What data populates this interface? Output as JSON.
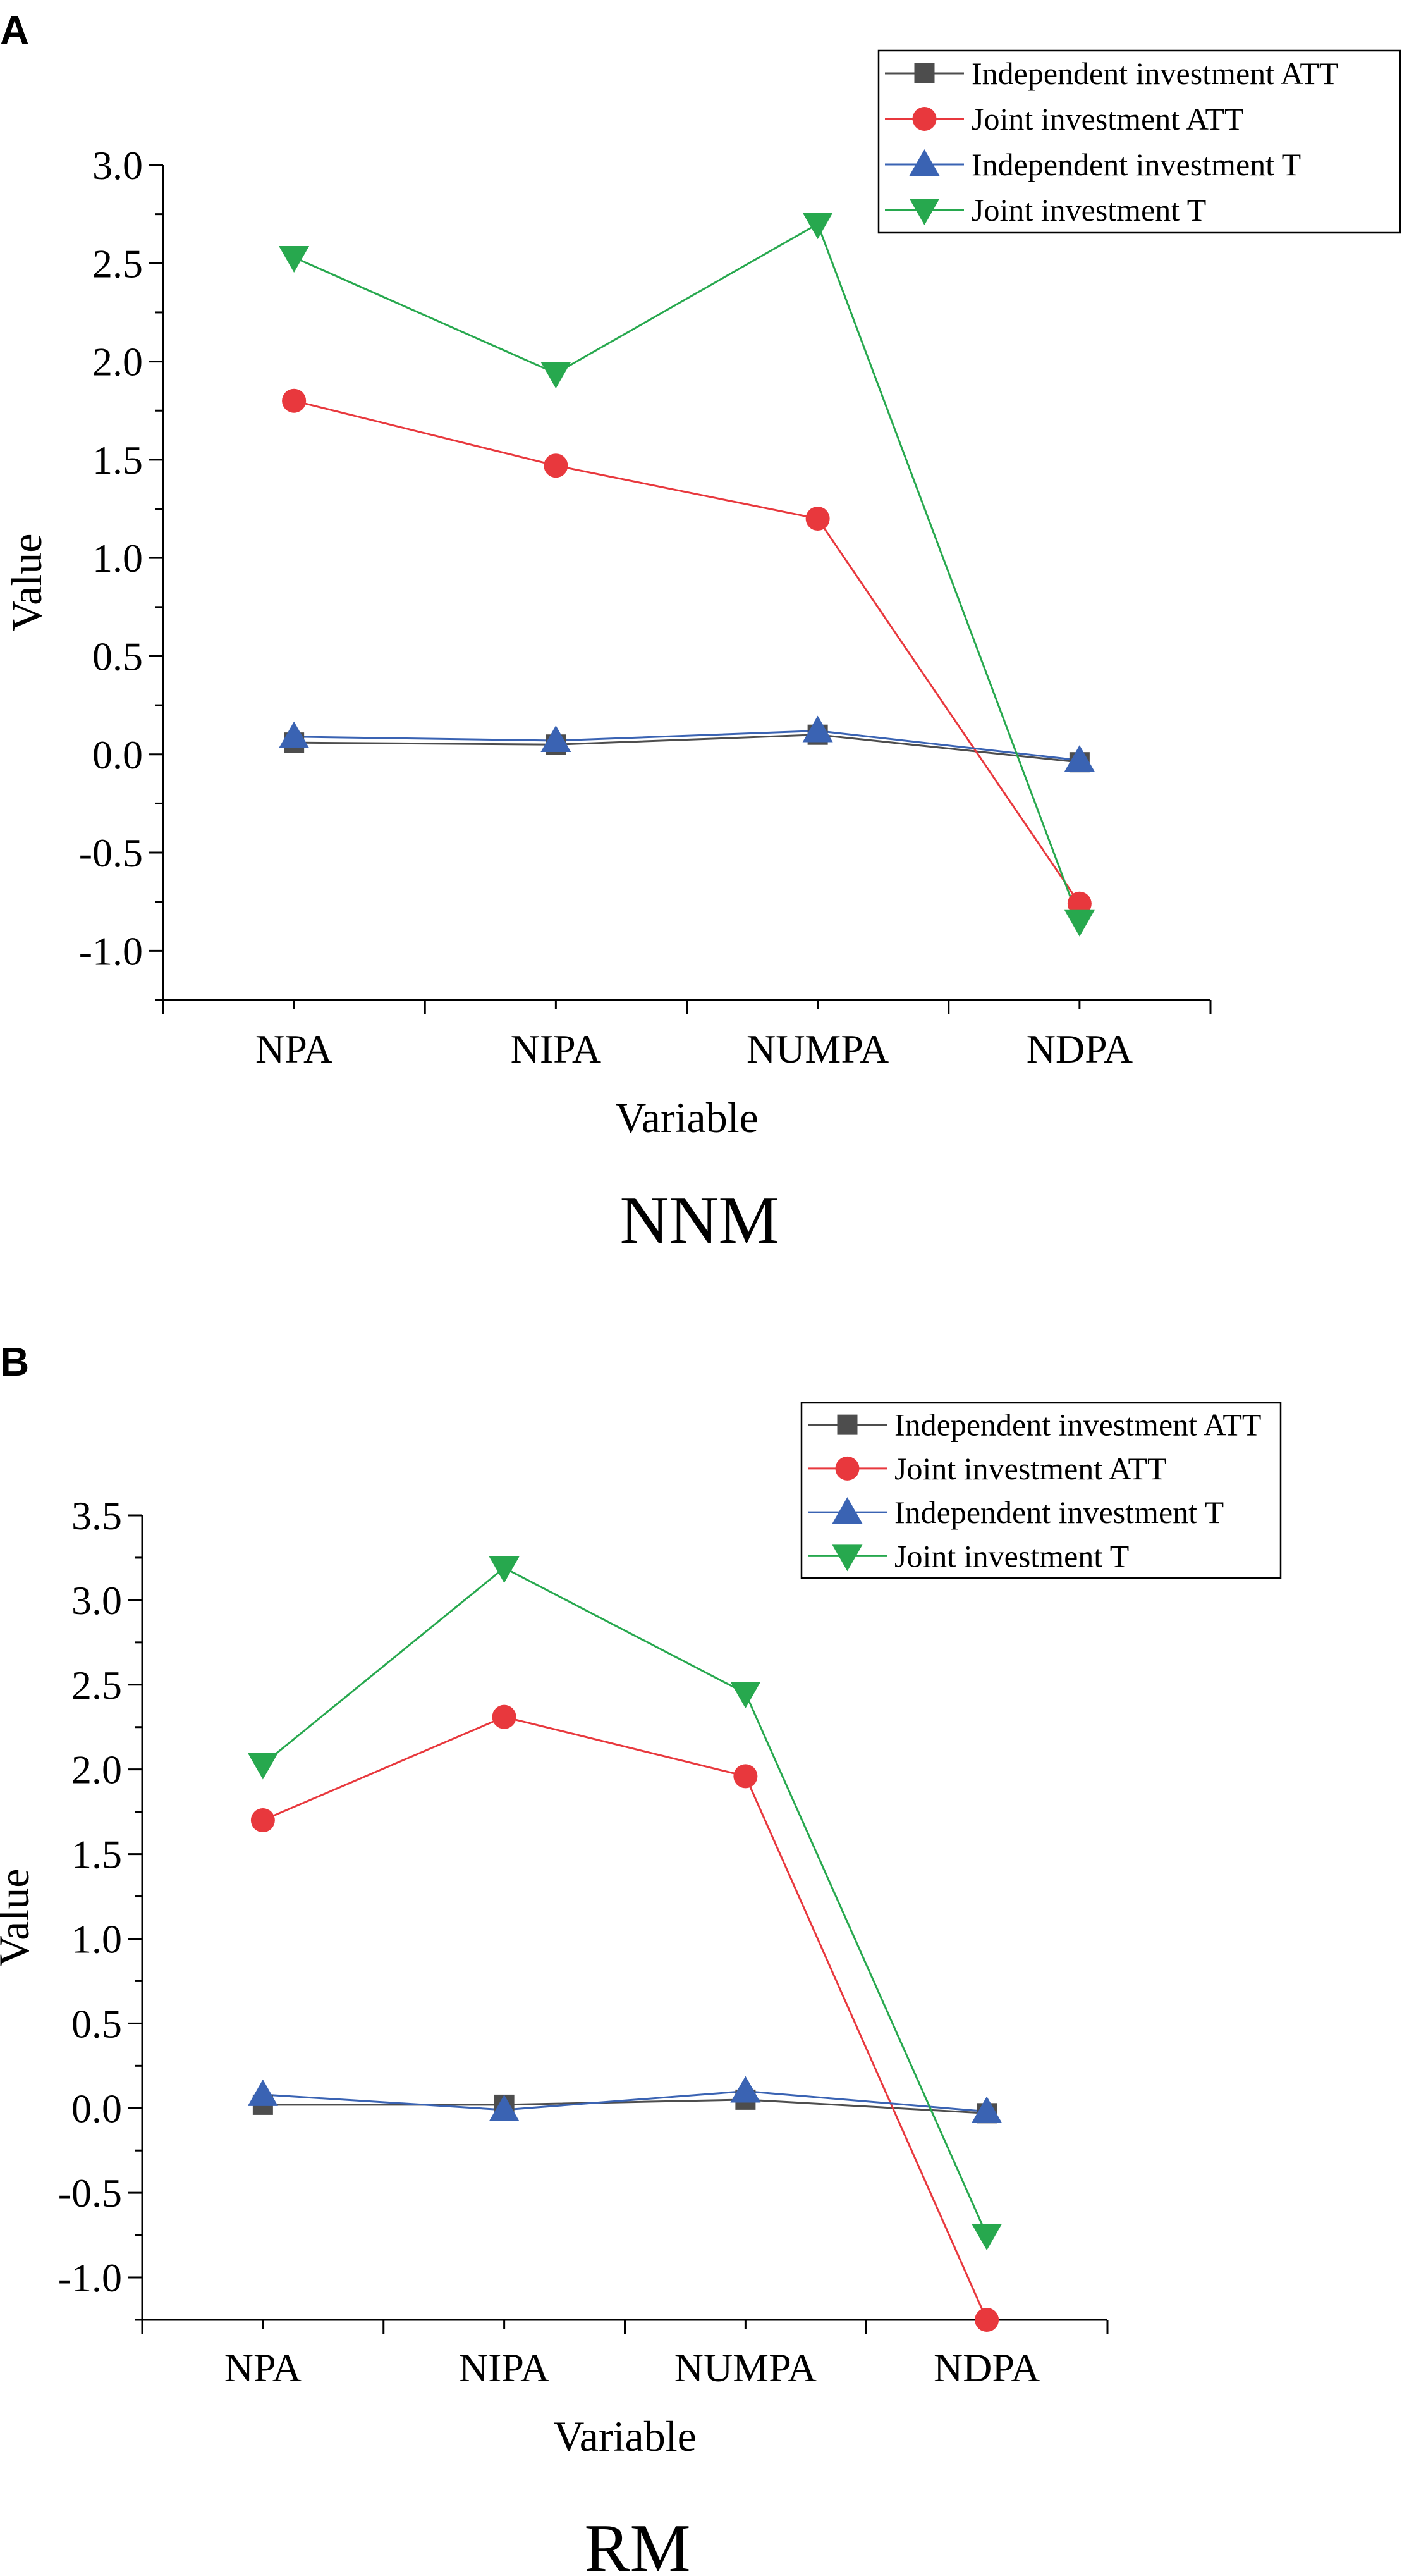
{
  "chart_data": [
    {
      "panel": "A",
      "type": "line",
      "caption": "NNM",
      "xlabel": "Variable",
      "ylabel": "Value",
      "categories": [
        "NPA",
        "NIPA",
        "NUMPA",
        "NDPA"
      ],
      "ylim": [
        -1.25,
        3.0
      ],
      "yticks": [
        -1.0,
        -0.5,
        0.0,
        0.5,
        1.0,
        1.5,
        2.0,
        2.5,
        3.0
      ],
      "ytick_labels": [
        "-1.0",
        "-0.5",
        "0.0",
        "0.5",
        "1.0",
        "1.5",
        "2.0",
        "2.5",
        "3.0"
      ],
      "legend_position": "top-right",
      "series": [
        {
          "name": "Independent investment ATT",
          "color": "#4d4d4d",
          "marker": "square",
          "values": [
            0.06,
            0.05,
            0.1,
            -0.04
          ]
        },
        {
          "name": "Joint investment ATT",
          "color": "#e8383d",
          "marker": "circle",
          "values": [
            1.8,
            1.47,
            1.2,
            -0.76
          ]
        },
        {
          "name": "Independent investment T",
          "color": "#3a63b3",
          "marker": "triangle-up",
          "values": [
            0.09,
            0.07,
            0.12,
            -0.03
          ]
        },
        {
          "name": "Joint investment T",
          "color": "#27a84e",
          "marker": "triangle-down",
          "values": [
            2.53,
            1.94,
            2.7,
            -0.85
          ]
        }
      ]
    },
    {
      "panel": "B",
      "type": "line",
      "caption": "RM",
      "xlabel": "Variable",
      "ylabel": "Value",
      "categories": [
        "NPA",
        "NIPA",
        "NUMPA",
        "NDPA"
      ],
      "ylim": [
        -1.25,
        3.5
      ],
      "yticks": [
        -1.0,
        -0.5,
        0.0,
        0.5,
        1.0,
        1.5,
        2.0,
        2.5,
        3.0,
        3.5
      ],
      "ytick_labels": [
        "-1.0",
        "-0.5",
        "0.0",
        "0.5",
        "1.0",
        "1.5",
        "2.0",
        "2.5",
        "3.0",
        "3.5"
      ],
      "legend_position": "top-right",
      "series": [
        {
          "name": "Independent investment ATT",
          "color": "#4d4d4d",
          "marker": "square",
          "values": [
            0.02,
            0.02,
            0.05,
            -0.03
          ]
        },
        {
          "name": "Joint investment ATT",
          "color": "#e8383d",
          "marker": "circle",
          "values": [
            1.7,
            2.31,
            1.96,
            -1.25
          ]
        },
        {
          "name": "Independent investment T",
          "color": "#3a63b3",
          "marker": "triangle-up",
          "values": [
            0.08,
            -0.01,
            0.1,
            -0.02
          ]
        },
        {
          "name": "Joint investment T",
          "color": "#27a84e",
          "marker": "triangle-down",
          "values": [
            2.03,
            3.19,
            2.45,
            -0.75
          ]
        }
      ]
    }
  ]
}
